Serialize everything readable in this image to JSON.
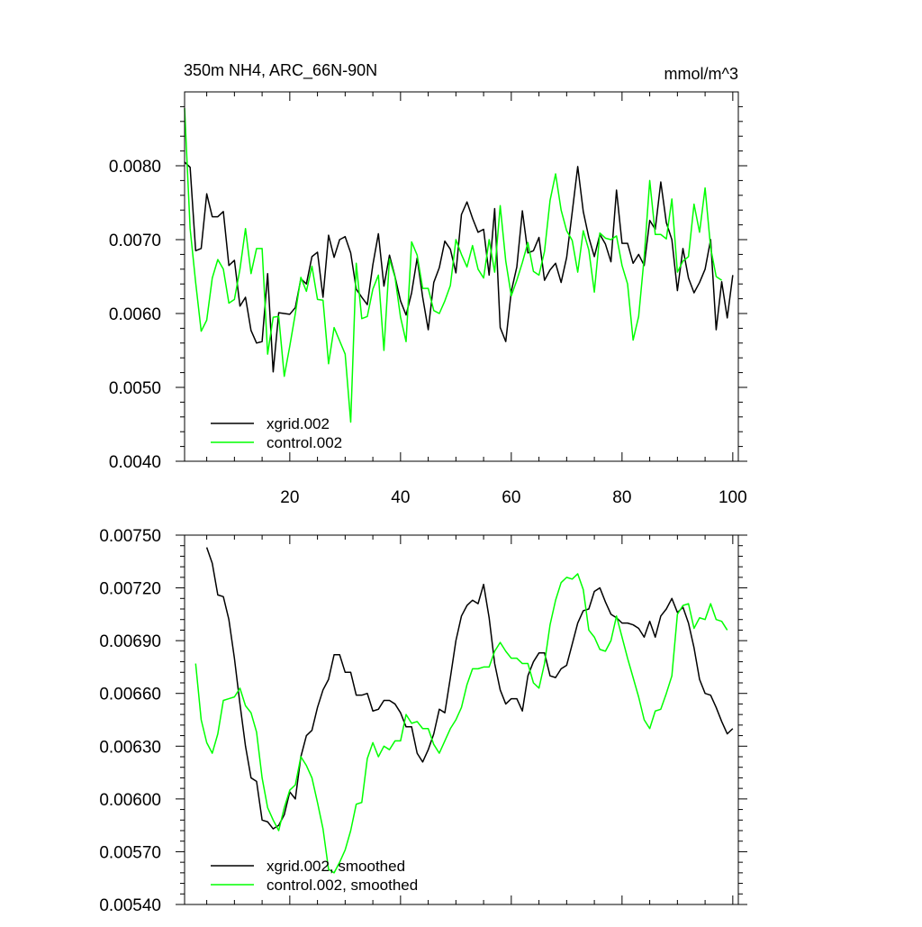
{
  "chart_data": [
    {
      "type": "line",
      "title": "350m NH4, ARC_66N-90N",
      "units": "mmol/m^3",
      "xlim": [
        1,
        101
      ],
      "ylim": [
        0.004,
        0.009
      ],
      "x_ticks": [
        "20",
        "40",
        "60",
        "80",
        "100"
      ],
      "x_tick_values": [
        20,
        40,
        60,
        80,
        100
      ],
      "y_ticks": [
        "0.0040",
        "0.0050",
        "0.0060",
        "0.0070",
        "0.0080"
      ],
      "y_tick_values": [
        0.004,
        0.005,
        0.006,
        0.007,
        0.008
      ],
      "grid": false,
      "legend_position": "bottom-left",
      "series": [
        {
          "name": "xgrid.002",
          "color": "#000000",
          "x_start": 1,
          "values": [
            0.00805,
            0.00798,
            0.00685,
            0.00688,
            0.00762,
            0.00731,
            0.00731,
            0.00738,
            0.00665,
            0.00672,
            0.0061,
            0.00622,
            0.00577,
            0.0056,
            0.00562,
            0.00654,
            0.00521,
            0.00601,
            0.006,
            0.00599,
            0.00608,
            0.00647,
            0.0064,
            0.00677,
            0.00683,
            0.00622,
            0.00706,
            0.00676,
            0.007,
            0.00704,
            0.00682,
            0.00633,
            0.00622,
            0.00612,
            0.00666,
            0.00708,
            0.00637,
            0.00679,
            0.0065,
            0.00617,
            0.00598,
            0.00628,
            0.00675,
            0.00622,
            0.00578,
            0.00642,
            0.00662,
            0.00698,
            0.00687,
            0.00655,
            0.00734,
            0.00751,
            0.00729,
            0.0071,
            0.00714,
            0.00652,
            0.00742,
            0.00581,
            0.00562,
            0.0063,
            0.00663,
            0.00739,
            0.00682,
            0.00685,
            0.00703,
            0.00645,
            0.00659,
            0.00668,
            0.00642,
            0.00676,
            0.00737,
            0.00799,
            0.00738,
            0.00703,
            0.00677,
            0.00707,
            0.00694,
            0.0067,
            0.00767,
            0.00695,
            0.00695,
            0.00668,
            0.0068,
            0.00665,
            0.00726,
            0.00714,
            0.00778,
            0.00723,
            0.007,
            0.00631,
            0.00688,
            0.00648,
            0.00628,
            0.00642,
            0.0066,
            0.007,
            0.00578,
            0.00643,
            0.00594,
            0.00652
          ]
        },
        {
          "name": "control.002",
          "color": "#00ff00",
          "x_start": 1,
          "values": [
            0.00878,
            0.00715,
            0.00642,
            0.00576,
            0.00591,
            0.00648,
            0.00673,
            0.0066,
            0.00614,
            0.00619,
            0.0066,
            0.00715,
            0.00654,
            0.00688,
            0.00688,
            0.00545,
            0.00595,
            0.00596,
            0.00515,
            0.00556,
            0.006,
            0.00649,
            0.0063,
            0.00664,
            0.00619,
            0.00618,
            0.00532,
            0.00581,
            0.00563,
            0.00545,
            0.00453,
            0.00668,
            0.00593,
            0.00596,
            0.00633,
            0.00652,
            0.0055,
            0.00674,
            0.00649,
            0.00595,
            0.00562,
            0.00697,
            0.00679,
            0.00634,
            0.00634,
            0.00604,
            0.006,
            0.00617,
            0.00638,
            0.007,
            0.0068,
            0.00663,
            0.00692,
            0.0066,
            0.00648,
            0.007,
            0.00656,
            0.00746,
            0.00671,
            0.00624,
            0.00645,
            0.00669,
            0.00696,
            0.00657,
            0.00652,
            0.00684,
            0.00753,
            0.00789,
            0.0074,
            0.00712,
            0.00699,
            0.00656,
            0.00712,
            0.00686,
            0.00629,
            0.00709,
            0.00702,
            0.007,
            0.00705,
            0.00665,
            0.0064,
            0.00564,
            0.00596,
            0.00676,
            0.0078,
            0.00707,
            0.00707,
            0.00701,
            0.00755,
            0.00656,
            0.00671,
            0.00677,
            0.00748,
            0.0071,
            0.0077,
            0.00689,
            0.0065,
            0.00645
          ]
        }
      ]
    },
    {
      "type": "line",
      "title": "",
      "xlim": [
        1,
        101
      ],
      "ylim": [
        0.0054,
        0.0075
      ],
      "y_ticks": [
        "0.00750",
        "0.00720",
        "0.00690",
        "0.00660",
        "0.00630",
        "0.00600",
        "0.00570",
        "0.00540"
      ],
      "y_tick_values": [
        0.0075,
        0.0072,
        0.0069,
        0.0066,
        0.0063,
        0.006,
        0.0057,
        0.0054
      ],
      "x_tick_values": [
        20,
        40,
        60,
        80,
        100
      ],
      "grid": false,
      "legend_position": "bottom-left",
      "series": [
        {
          "name": "xgrid.002, smoothed",
          "color": "#000000",
          "x_start": 5,
          "values": [
            0.00743,
            0.00734,
            0.00716,
            0.00715,
            0.00702,
            0.0068,
            0.00654,
            0.0063,
            0.00612,
            0.0061,
            0.00588,
            0.00587,
            0.00583,
            0.00585,
            0.00591,
            0.00604,
            0.006,
            0.00624,
            0.00636,
            0.00639,
            0.00652,
            0.00662,
            0.00668,
            0.00682,
            0.00682,
            0.00672,
            0.00672,
            0.00659,
            0.00659,
            0.0066,
            0.0065,
            0.00651,
            0.00656,
            0.00656,
            0.00654,
            0.00649,
            0.00641,
            0.00641,
            0.00626,
            0.00621,
            0.00628,
            0.00637,
            0.00651,
            0.00649,
            0.00669,
            0.0069,
            0.00704,
            0.0071,
            0.00713,
            0.00711,
            0.00722,
            0.00703,
            0.00677,
            0.00662,
            0.00654,
            0.00657,
            0.00657,
            0.0065,
            0.0067,
            0.00678,
            0.00683,
            0.00683,
            0.0067,
            0.00669,
            0.00674,
            0.00676,
            0.00688,
            0.007,
            0.00707,
            0.00708,
            0.00718,
            0.0072,
            0.00712,
            0.00705,
            0.00703,
            0.007,
            0.007,
            0.00699,
            0.00697,
            0.00692,
            0.00701,
            0.00692,
            0.00704,
            0.00708,
            0.00714,
            0.00706,
            0.00709,
            0.007,
            0.00686,
            0.00668,
            0.0066,
            0.00659,
            0.00652,
            0.00644,
            0.00637,
            0.0064
          ]
        },
        {
          "name": "control.002, smoothed",
          "color": "#00ff00",
          "x_start": 3,
          "values": [
            0.00677,
            0.00645,
            0.00632,
            0.00626,
            0.00637,
            0.00656,
            0.00657,
            0.00658,
            0.00663,
            0.00653,
            0.00649,
            0.00638,
            0.00612,
            0.00595,
            0.00588,
            0.00582,
            0.00595,
            0.00605,
            0.00608,
            0.00624,
            0.00619,
            0.00612,
            0.00598,
            0.00583,
            0.0056,
            0.00558,
            0.00564,
            0.00571,
            0.00582,
            0.00597,
            0.00598,
            0.00623,
            0.00632,
            0.00624,
            0.0063,
            0.00628,
            0.00633,
            0.00633,
            0.00648,
            0.00643,
            0.00644,
            0.0064,
            0.0064,
            0.00631,
            0.00626,
            0.00633,
            0.0064,
            0.00645,
            0.00652,
            0.00665,
            0.00674,
            0.00674,
            0.00675,
            0.00675,
            0.00684,
            0.00689,
            0.00684,
            0.0068,
            0.0068,
            0.00677,
            0.00677,
            0.00666,
            0.00663,
            0.00677,
            0.00699,
            0.00713,
            0.00723,
            0.00726,
            0.00725,
            0.00728,
            0.00719,
            0.00696,
            0.00692,
            0.00685,
            0.00684,
            0.0069,
            0.00704,
            0.00692,
            0.0068,
            0.00669,
            0.00658,
            0.00645,
            0.0064,
            0.0065,
            0.00651,
            0.0066,
            0.0067,
            0.00705,
            0.0071,
            0.00711,
            0.00697,
            0.00703,
            0.00702,
            0.00711,
            0.00702,
            0.00701,
            0.00696
          ]
        }
      ]
    }
  ]
}
